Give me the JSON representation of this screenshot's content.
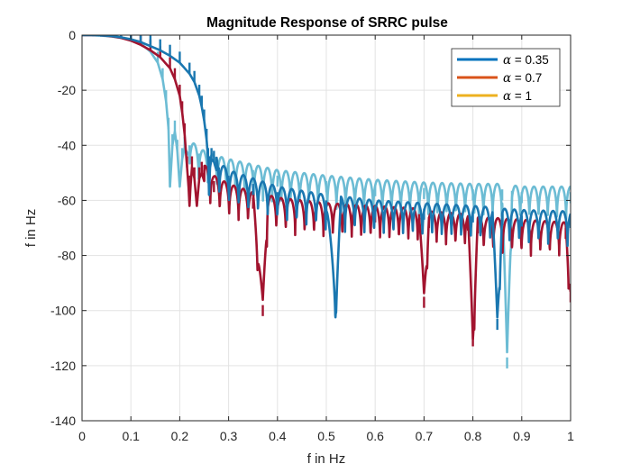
{
  "chart_data": {
    "type": "line",
    "title": "Magnitude Response of SRRC pulse",
    "xlabel": "f in Hz",
    "ylabel": "f in Hz",
    "xlim": [
      0,
      1
    ],
    "ylim": [
      -140,
      0
    ],
    "xticks": [
      "0",
      "0.1",
      "0.2",
      "0.3",
      "0.4",
      "0.5",
      "0.6",
      "0.7",
      "0.8",
      "0.9",
      "1"
    ],
    "yticks": [
      "0",
      "-20",
      "-40",
      "-60",
      "-80",
      "-100",
      "-120",
      "-140"
    ],
    "grid": true,
    "legend_position": "top-right",
    "legend": [
      {
        "symbol": "α",
        "text": " = 0.35",
        "color": "#0072BD"
      },
      {
        "symbol": "α",
        "text": " = 0.7",
        "color": "#D95319"
      },
      {
        "symbol": "α",
        "text": " = 1",
        "color": "#EDB120"
      }
    ],
    "series": [
      {
        "color": "#6CBCD4",
        "x": [
          0,
          0.02,
          0.04,
          0.06,
          0.08,
          0.1,
          0.12,
          0.14,
          0.155,
          0.165,
          0.172,
          0.177,
          0.18,
          0.185,
          0.19,
          0.195,
          0.2,
          0.205,
          0.21,
          0.22,
          0.24,
          0.26,
          0.3,
          0.35,
          0.4,
          0.5,
          0.6,
          0.7,
          0.8,
          0.86,
          0.87,
          0.88,
          0.9,
          1.0
        ],
        "y": [
          0,
          0,
          -0.2,
          -0.5,
          -1,
          -1.8,
          -3,
          -6,
          -10,
          -16,
          -24,
          -34,
          -55,
          -40,
          -35,
          -42,
          -55,
          -45,
          -41,
          -44,
          -47,
          -49,
          -51,
          -53,
          -55,
          -57,
          -58.5,
          -59.5,
          -60,
          -60,
          -121,
          -60.5,
          -61,
          -61
        ]
      },
      {
        "color": "#A2142F",
        "x": [
          0,
          0.02,
          0.04,
          0.06,
          0.08,
          0.1,
          0.12,
          0.14,
          0.16,
          0.18,
          0.19,
          0.2,
          0.205,
          0.21,
          0.215,
          0.218,
          0.22,
          0.222,
          0.225,
          0.23,
          0.235,
          0.24,
          0.245,
          0.25,
          0.27,
          0.3,
          0.35,
          0.37,
          0.38,
          0.4,
          0.5,
          0.6,
          0.69,
          0.7,
          0.71,
          0.79,
          0.8,
          0.81,
          0.9,
          0.99,
          1.0
        ],
        "y": [
          0,
          0,
          -0.1,
          -0.4,
          -1,
          -2,
          -3.5,
          -5.5,
          -8,
          -12,
          -16,
          -22,
          -28,
          -36,
          -48,
          -55,
          -62,
          -55,
          -48,
          -52,
          -62,
          -52,
          -50,
          -53,
          -57,
          -60,
          -63,
          -102,
          -64,
          -65,
          -67,
          -68,
          -69,
          -99,
          -70,
          -71,
          -113,
          -72,
          -73,
          -74,
          -97
        ]
      },
      {
        "color": "#1A77B0",
        "x": [
          0,
          0.02,
          0.04,
          0.06,
          0.08,
          0.1,
          0.12,
          0.14,
          0.16,
          0.18,
          0.2,
          0.22,
          0.23,
          0.24,
          0.245,
          0.25,
          0.255,
          0.258,
          0.26,
          0.262,
          0.265,
          0.27,
          0.28,
          0.3,
          0.35,
          0.4,
          0.5,
          0.52,
          0.53,
          0.6,
          0.7,
          0.8,
          0.84,
          0.85,
          0.86,
          0.9,
          1.0
        ],
        "y": [
          0,
          0,
          -0.1,
          -0.3,
          -0.8,
          -1.5,
          -2.5,
          -4,
          -5.5,
          -7.5,
          -10,
          -14,
          -17,
          -22,
          -26,
          -31,
          -38,
          -45,
          -58,
          -48,
          -45,
          -46,
          -52,
          -55,
          -58,
          -61,
          -64,
          -101,
          -64.5,
          -66,
          -67,
          -68,
          -68.5,
          -107,
          -69,
          -69.5,
          -70
        ]
      }
    ]
  }
}
